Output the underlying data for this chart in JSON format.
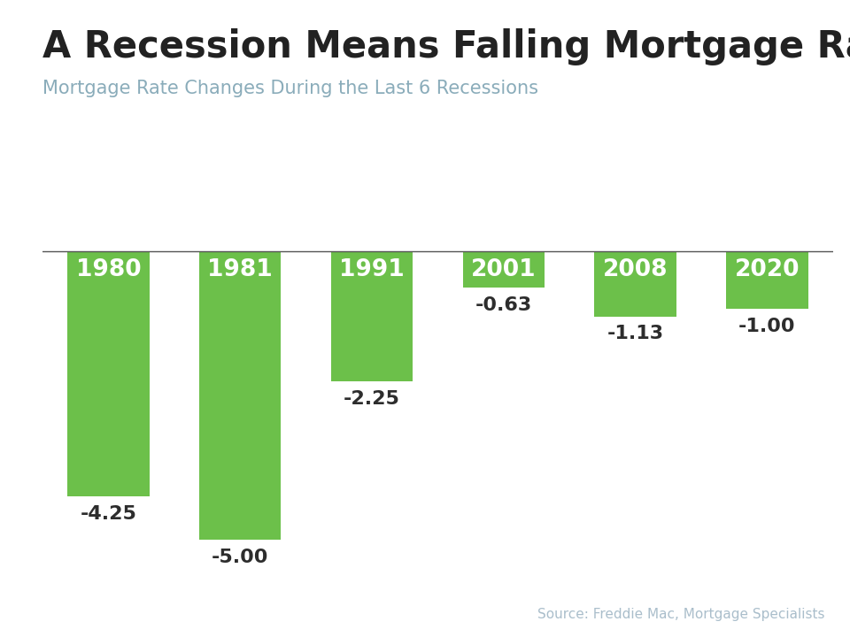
{
  "title": "A Recession Means Falling Mortgage Rates",
  "subtitle": "Mortgage Rate Changes During the Last 6 Recessions",
  "source": "Source: Freddie Mac, Mortgage Specialists",
  "categories": [
    "1980",
    "1981",
    "1991",
    "2001",
    "2008",
    "2020"
  ],
  "values": [
    -4.25,
    -5.0,
    -2.25,
    -0.63,
    -1.13,
    -1.0
  ],
  "bar_color": "#6cc04a",
  "bar_label_color_inside": "#ffffff",
  "bar_label_color_outside": "#2d2d2d",
  "title_color": "#222222",
  "subtitle_color": "#8aacba",
  "source_color": "#aabecb",
  "top_bar_color": "#29b5d8",
  "background_color": "#ffffff",
  "ylim": [
    -5.8,
    0.6
  ],
  "title_fontsize": 30,
  "subtitle_fontsize": 15,
  "label_fontsize": 16,
  "year_fontsize": 19,
  "source_fontsize": 11
}
